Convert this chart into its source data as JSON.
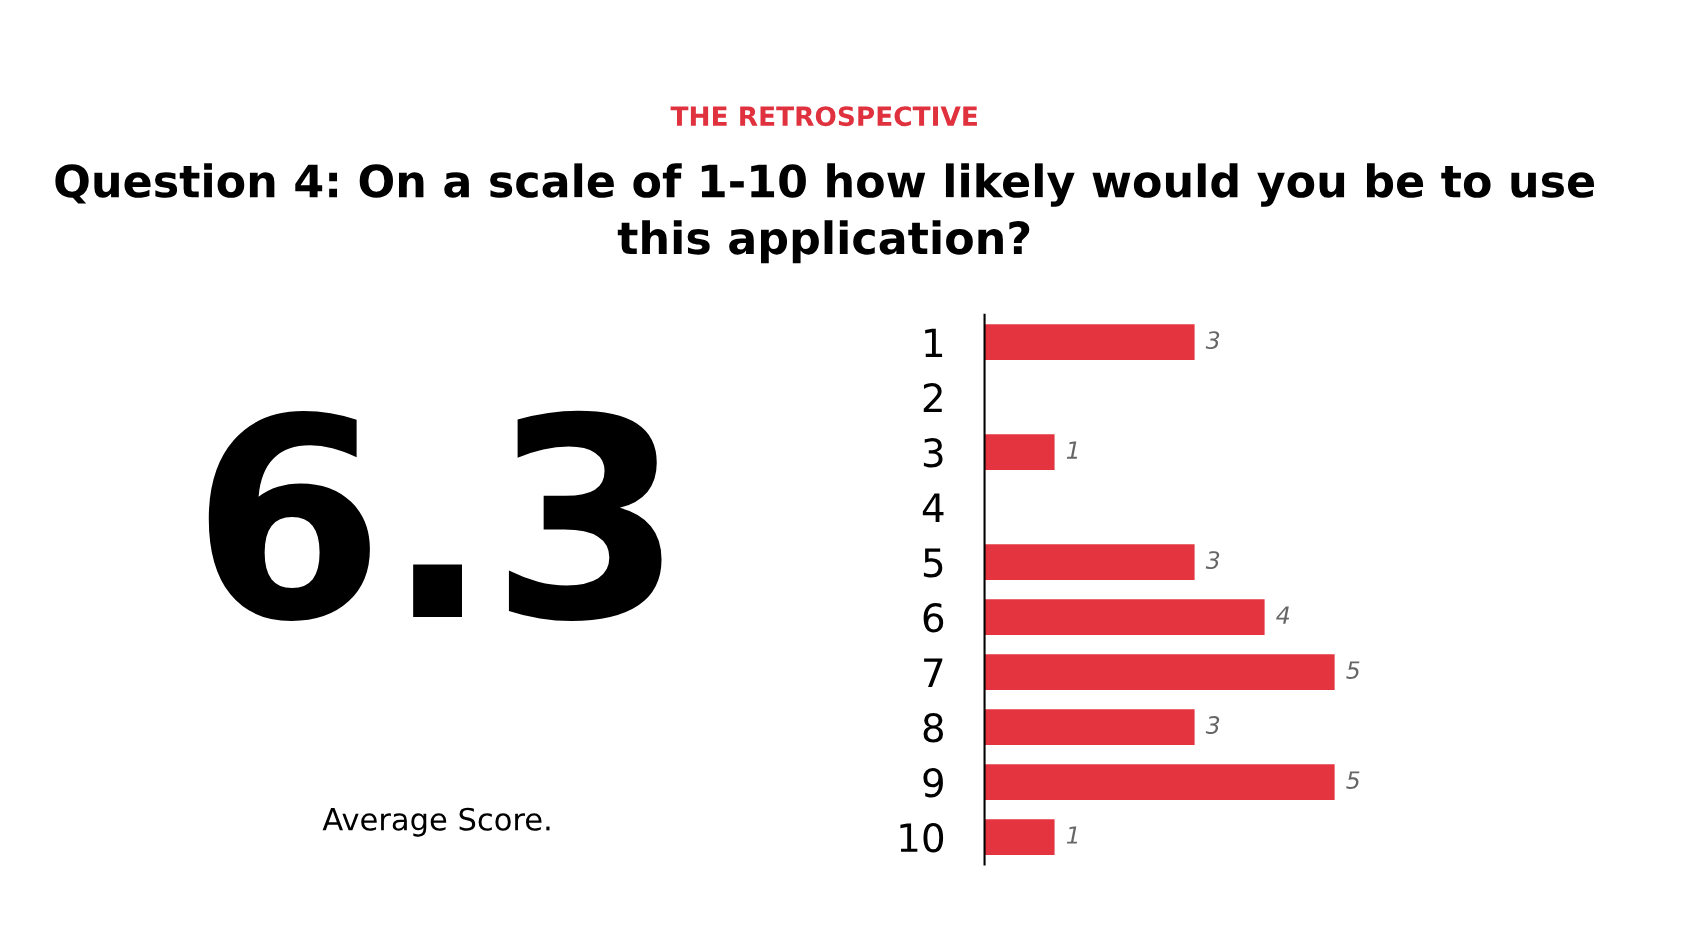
{
  "chart_data": [
    {
      "type": "other",
      "annotations": [
        "6.3",
        "Average Score."
      ]
    },
    {
      "type": "bar",
      "orientation": "horizontal",
      "subtitle": "THE RETROSPECTIVE",
      "title": "Question 4: On a scale of 1-10 how likely would you be to use this application?",
      "categories": [
        "1",
        "2",
        "3",
        "4",
        "5",
        "6",
        "7",
        "8",
        "9",
        "10"
      ],
      "values": [
        3,
        null,
        1,
        null,
        3,
        4,
        5,
        3,
        5,
        1
      ],
      "color": "#e3343f",
      "data_labels": true,
      "tick_labels": "y",
      "grid": false,
      "legend": false
    }
  ]
}
